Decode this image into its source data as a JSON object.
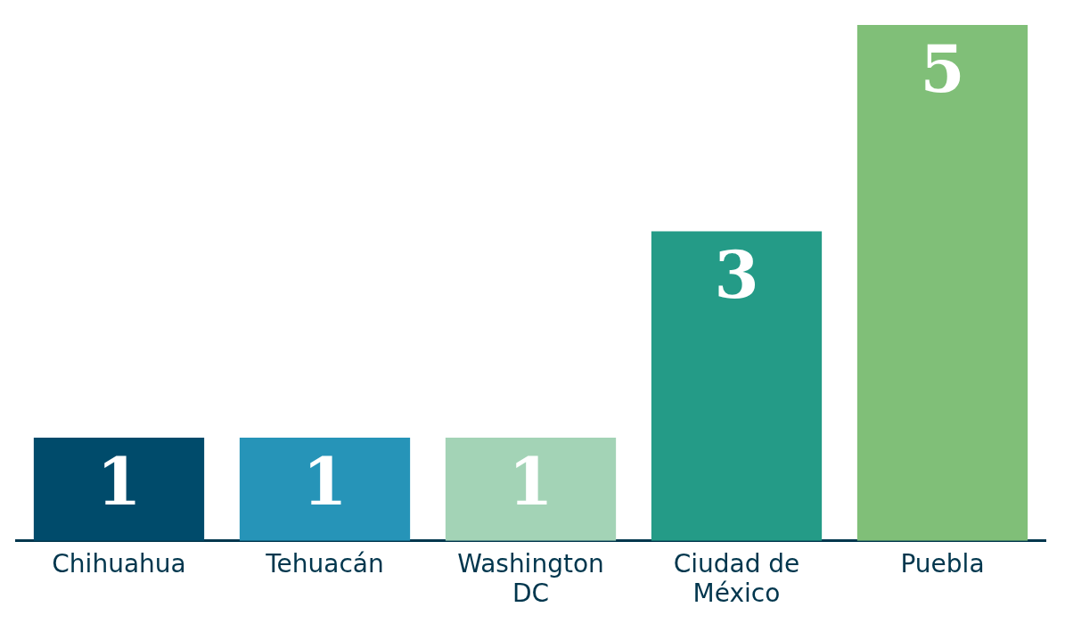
{
  "chart_data": {
    "type": "bar",
    "categories": [
      "Chihuahua",
      "Tehuacán",
      "Washington DC",
      "Ciudad de México",
      "Puebla"
    ],
    "values": [
      1,
      1,
      1,
      3,
      5
    ],
    "colors": [
      "#004b6b",
      "#2694b8",
      "#a3d3b6",
      "#249b87",
      "#80bf78"
    ],
    "data_labels": true,
    "grid": false,
    "legend": false
  }
}
